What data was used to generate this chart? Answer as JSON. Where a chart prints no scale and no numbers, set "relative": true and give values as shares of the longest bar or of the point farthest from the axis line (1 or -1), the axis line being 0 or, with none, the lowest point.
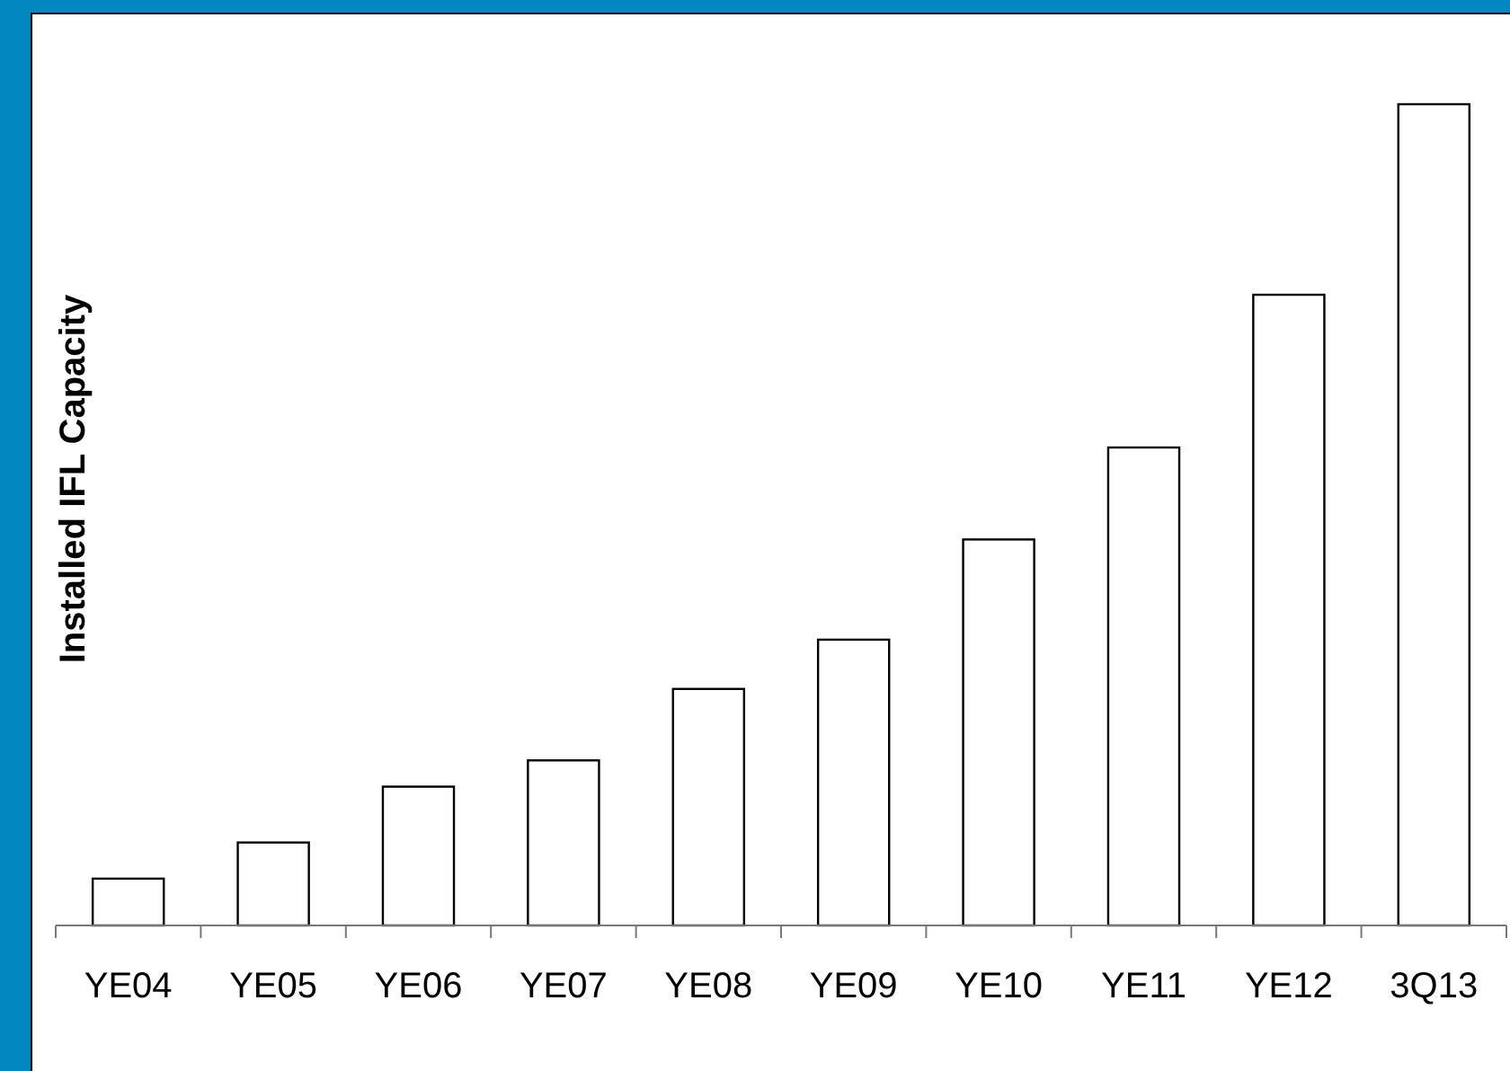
{
  "chart_data": {
    "type": "bar",
    "relative": true,
    "ylabel": "Installed IFL Capacity",
    "categories": [
      "YE04",
      "YE05",
      "YE06",
      "YE07",
      "YE08",
      "YE09",
      "YE10",
      "YE11",
      "YE12",
      "3Q13"
    ],
    "values": [
      0.057,
      0.101,
      0.169,
      0.201,
      0.288,
      0.348,
      0.47,
      0.582,
      0.768,
      1
    ],
    "color": "#ffffff"
  }
}
